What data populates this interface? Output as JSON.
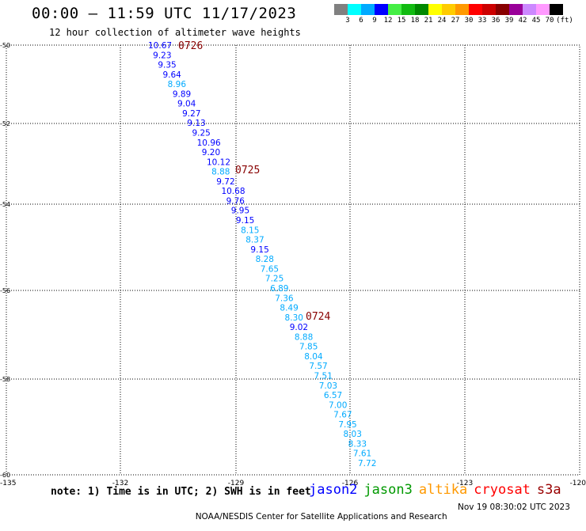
{
  "title": "00:00 – 11:59 UTC 11/17/2023",
  "subtitle": "12 hour collection of altimeter wave heights",
  "legend": {
    "colors": [
      "#808080",
      "#00ffff",
      "#00aaff",
      "#0000ff",
      "#44ee44",
      "#11bb11",
      "#008800",
      "#ffff00",
      "#ffcc00",
      "#ff9900",
      "#ff0000",
      "#cc0000",
      "#880000",
      "#990099",
      "#cc88ff",
      "#ff99ff",
      "#000000"
    ],
    "labels": [
      "3",
      "6",
      "9",
      "12",
      "15",
      "18",
      "21",
      "24",
      "27",
      "30",
      "33",
      "36",
      "39",
      "42",
      "45",
      "70"
    ],
    "unit": "(ft)"
  },
  "axes": {
    "lat_labels": [
      "-50",
      "-52",
      "-54",
      "-56",
      "-58",
      "-60"
    ],
    "lon_labels": [
      "-135",
      "-132",
      "-129",
      "-126",
      "-123",
      "-120"
    ]
  },
  "track_labels": [
    "0726",
    "0725",
    "0724"
  ],
  "waves": [
    {
      "v": "10.67",
      "c": "#0000ff"
    },
    {
      "v": "9.23",
      "c": "#0000ff"
    },
    {
      "v": "9.35",
      "c": "#0000ff"
    },
    {
      "v": "9.64",
      "c": "#0000ff"
    },
    {
      "v": "8.96",
      "c": "#00aaff"
    },
    {
      "v": "9.89",
      "c": "#0000ff"
    },
    {
      "v": "9.04",
      "c": "#0000ff"
    },
    {
      "v": "9.27",
      "c": "#0000ff"
    },
    {
      "v": "9.13",
      "c": "#0000ff"
    },
    {
      "v": "9.25",
      "c": "#0000ff"
    },
    {
      "v": "10.96",
      "c": "#0000ff"
    },
    {
      "v": "9.20",
      "c": "#0000ff"
    },
    {
      "v": "10.12",
      "c": "#0000ff"
    },
    {
      "v": "8.88",
      "c": "#00aaff"
    },
    {
      "v": "9.72",
      "c": "#0000ff"
    },
    {
      "v": "10.68",
      "c": "#0000ff"
    },
    {
      "v": "9.76",
      "c": "#0000ff"
    },
    {
      "v": "9.95",
      "c": "#0000ff"
    },
    {
      "v": "9.15",
      "c": "#0000ff"
    },
    {
      "v": "8.15",
      "c": "#00aaff"
    },
    {
      "v": "8.37",
      "c": "#00aaff"
    },
    {
      "v": "9.15",
      "c": "#0000ff"
    },
    {
      "v": "8.28",
      "c": "#00aaff"
    },
    {
      "v": "7.65",
      "c": "#00aaff"
    },
    {
      "v": "7.25",
      "c": "#00aaff"
    },
    {
      "v": "6.89",
      "c": "#00aaff"
    },
    {
      "v": "7.36",
      "c": "#00aaff"
    },
    {
      "v": "8.49",
      "c": "#00aaff"
    },
    {
      "v": "8.30",
      "c": "#00aaff"
    },
    {
      "v": "9.02",
      "c": "#0000ff"
    },
    {
      "v": "8.88",
      "c": "#00aaff"
    },
    {
      "v": "7.85",
      "c": "#00aaff"
    },
    {
      "v": "8.04",
      "c": "#00aaff"
    },
    {
      "v": "7.57",
      "c": "#00aaff"
    },
    {
      "v": "7.51",
      "c": "#00aaff"
    },
    {
      "v": "7.03",
      "c": "#00aaff"
    },
    {
      "v": "6.57",
      "c": "#00aaff"
    },
    {
      "v": "7.00",
      "c": "#00aaff"
    },
    {
      "v": "7.67",
      "c": "#00aaff"
    },
    {
      "v": "7.95",
      "c": "#00aaff"
    },
    {
      "v": "8.03",
      "c": "#00aaff"
    },
    {
      "v": "8.33",
      "c": "#00aaff"
    },
    {
      "v": "7.61",
      "c": "#00aaff"
    },
    {
      "v": "7.72",
      "c": "#00aaff"
    }
  ],
  "note": "note: 1) Time is in UTC; 2) SWH is in feet",
  "satellites": [
    {
      "name": "jason2",
      "color": "#0000ff"
    },
    {
      "name": "jason3",
      "color": "#009900"
    },
    {
      "name": "altika",
      "color": "#ff9900"
    },
    {
      "name": "cryosat",
      "color": "#ff0000"
    },
    {
      "name": "s3a",
      "color": "#990000"
    }
  ],
  "credit": "NOAA/NESDIS Center for Satellite Applications and Research",
  "timestamp": "Nov 19 08:30:02 UTC 2023"
}
